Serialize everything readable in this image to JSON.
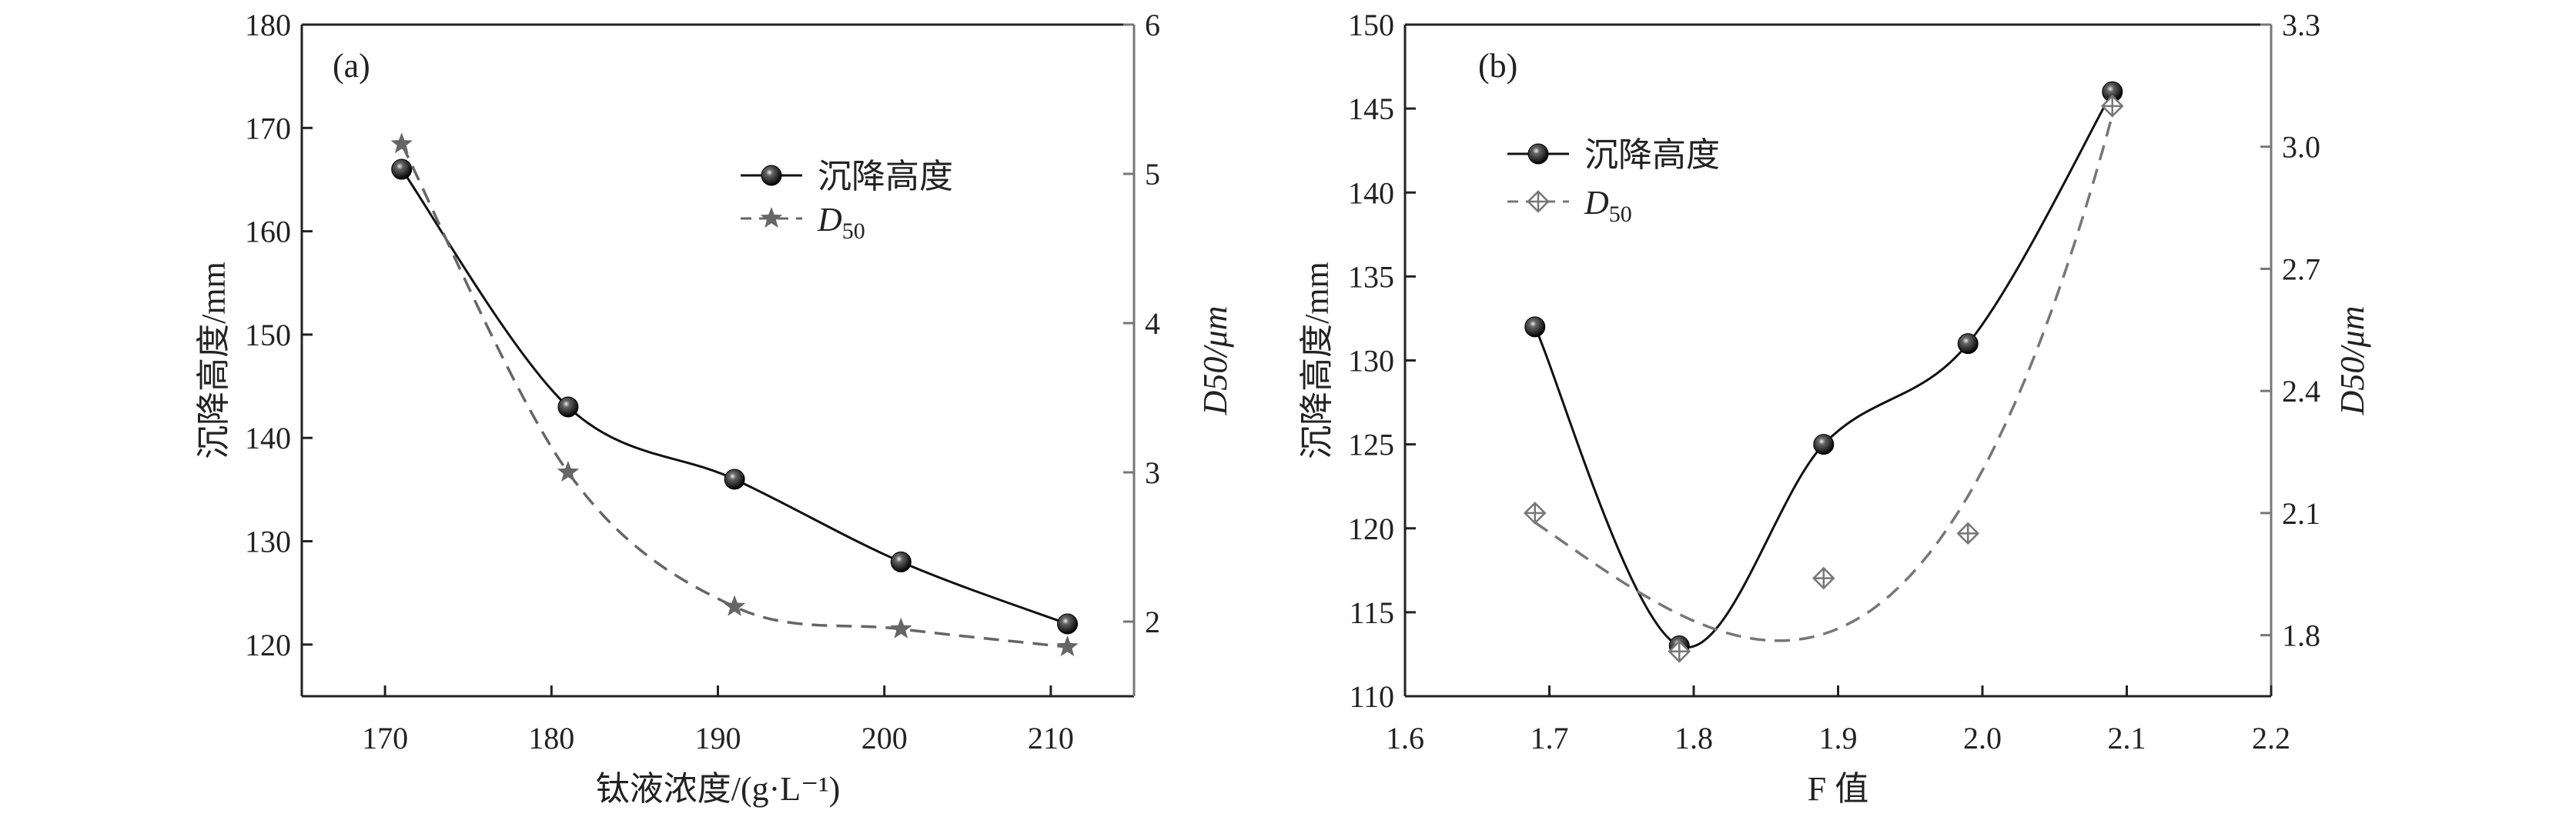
{
  "chart_data": [
    {
      "type": "line",
      "panel_label": "(a)",
      "xlabel": "钛液浓度/(g·L⁻¹)",
      "ylabel": "沉降高度/mm",
      "y2label": "D50/μm",
      "xlim": [
        165,
        215
      ],
      "ylim": [
        115,
        180
      ],
      "y2lim": [
        1.5,
        6
      ],
      "xticks": [
        "170",
        "180",
        "190",
        "200",
        "210"
      ],
      "yticks": [
        "120",
        "130",
        "140",
        "150",
        "160",
        "170",
        "180"
      ],
      "y2ticks": [
        "2",
        "3",
        "4",
        "5",
        "6"
      ],
      "legend_position": "upper-right",
      "series": [
        {
          "name": "沉降高度",
          "axis": "left",
          "marker": "sphere",
          "line": "solid",
          "color": "#111111",
          "x": [
            171,
            181,
            191,
            201,
            211
          ],
          "y": [
            166,
            143,
            136,
            128,
            122
          ]
        },
        {
          "name": "D50",
          "axis": "right",
          "marker": "star",
          "line": "dashed",
          "color": "#666666",
          "x": [
            171,
            181,
            191,
            201,
            211
          ],
          "y": [
            5.2,
            3.0,
            2.1,
            1.95,
            1.83
          ]
        }
      ]
    },
    {
      "type": "line",
      "panel_label": "(b)",
      "xlabel": "F 值",
      "ylabel": "沉降高度/mm",
      "y2label": "D50/μm",
      "xlim": [
        1.6,
        2.2
      ],
      "ylim": [
        110,
        150
      ],
      "y2lim": [
        1.65,
        3.3
      ],
      "xticks": [
        "1.6",
        "1.7",
        "1.8",
        "1.9",
        "2.0",
        "2.1",
        "2.2"
      ],
      "yticks": [
        "110",
        "115",
        "120",
        "125",
        "130",
        "135",
        "140",
        "145",
        "150"
      ],
      "y2ticks": [
        "1.8",
        "2.1",
        "2.4",
        "2.7",
        "3.0",
        "3.3"
      ],
      "legend_position": "upper-left",
      "series": [
        {
          "name": "沉降高度",
          "axis": "left",
          "marker": "sphere",
          "line": "solid",
          "color": "#111111",
          "x": [
            1.69,
            1.79,
            1.89,
            1.99,
            2.09
          ],
          "y": [
            132,
            113,
            125,
            131,
            146
          ]
        },
        {
          "name": "D50",
          "axis": "right",
          "marker": "crossed-diamond",
          "line": "dashed-fit",
          "color": "#777777",
          "x": [
            1.69,
            1.79,
            1.89,
            1.99,
            2.09
          ],
          "y": [
            2.1,
            1.76,
            1.94,
            2.05,
            3.1
          ]
        }
      ]
    }
  ]
}
